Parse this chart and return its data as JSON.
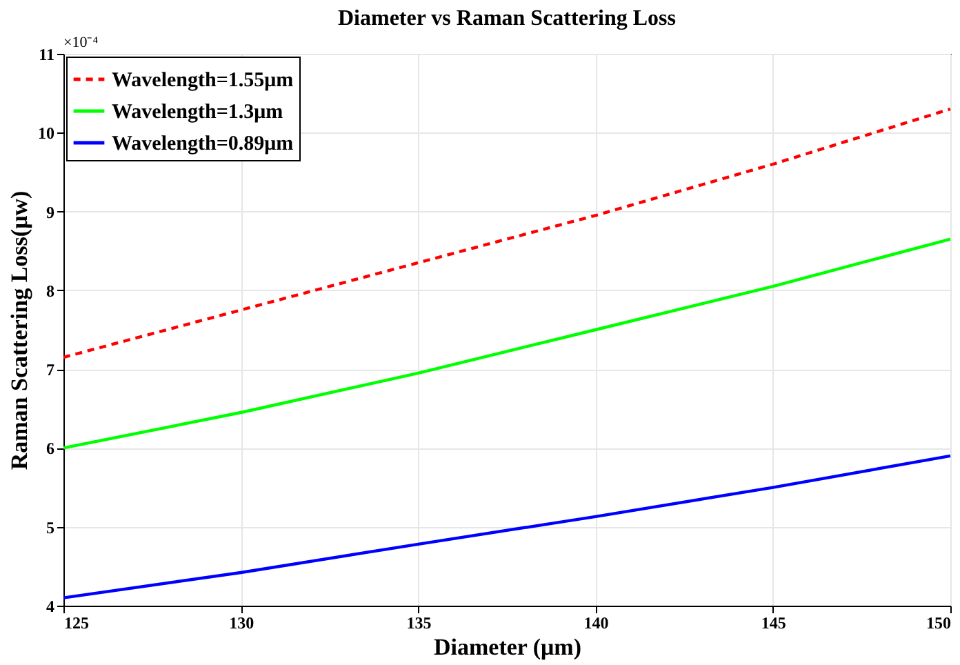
{
  "chart_data": {
    "type": "line",
    "title": "Diameter vs Raman Scattering Loss",
    "xlabel": "Diameter (μm)",
    "ylabel": "Raman Scattering Loss(μw)",
    "annotations": [
      "×10⁻⁴"
    ],
    "x": [
      125,
      130,
      135,
      140,
      145,
      150
    ],
    "series": [
      {
        "name": "Wavelength=1.55μm",
        "color": "#ff0000",
        "line_style": "dashed",
        "values": [
          7.15,
          7.75,
          8.35,
          8.95,
          9.6,
          10.3
        ]
      },
      {
        "name": "Wavelength=1.3μm",
        "color": "#00ff00",
        "line_style": "solid",
        "values": [
          6.0,
          6.45,
          6.95,
          7.5,
          8.05,
          8.65
        ]
      },
      {
        "name": "Wavelength=0.89μm",
        "color": "#0000ff",
        "line_style": "solid",
        "values": [
          4.1,
          4.42,
          4.78,
          5.13,
          5.5,
          5.9
        ]
      }
    ],
    "xlim": [
      125,
      150
    ],
    "xticks": [
      125,
      130,
      135,
      140,
      145,
      150
    ],
    "ylim": [
      4,
      11
    ],
    "yticks": [
      4,
      5,
      6,
      7,
      8,
      9,
      10,
      11
    ],
    "grid": true,
    "legend": "top left",
    "marker": "none"
  }
}
